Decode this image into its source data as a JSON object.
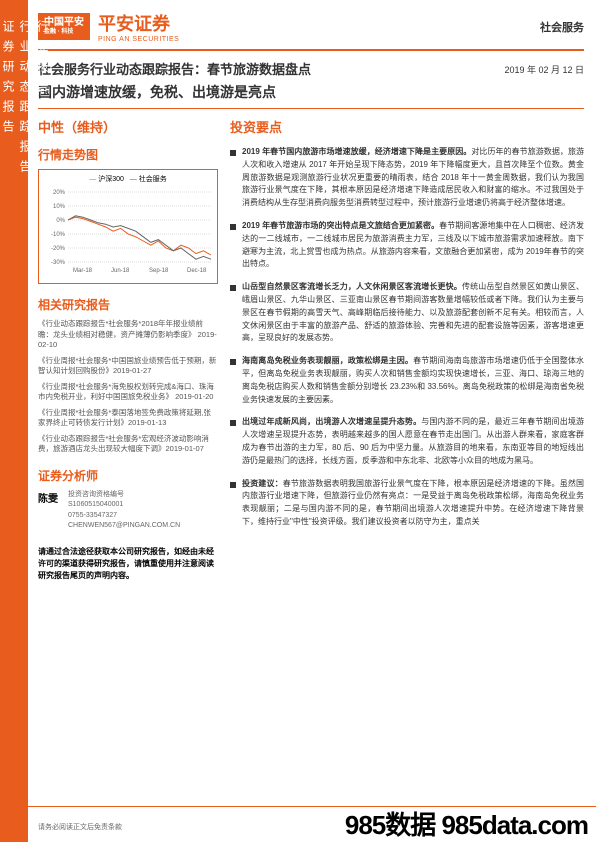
{
  "sidebar": {
    "blocks": [
      "行业报告",
      "行业动态跟踪报告",
      "证券研究报告"
    ]
  },
  "header": {
    "badge_main": "中国平安",
    "badge_sub": "金融 · 科技",
    "brand_cn": "平安证券",
    "brand_en": "PING AN SECURITIES",
    "category": "社会服务",
    "date": "2019 年 02 月 12 日"
  },
  "title": {
    "line1": "社会服务行业动态跟踪报告：春节旅游数据盘点",
    "line2": "国内游增速放缓，免税、出境游是亮点"
  },
  "rating": "中性（维持）",
  "chart": {
    "title": "行情走势图",
    "legend1": "沪深300",
    "legend2": "社会服务",
    "ylabels": [
      "20%",
      "10%",
      "0%",
      "-10%",
      "-20%",
      "-30%"
    ],
    "xlabels": [
      "Mar-18",
      "Jun-18",
      "Sep-18",
      "Dec-18"
    ],
    "series1_color": "#e85d1e",
    "series2_color": "#666666",
    "series1": [
      0,
      2,
      1,
      -1,
      -3,
      -5,
      -8,
      -6,
      -10,
      -12,
      -15,
      -18,
      -15,
      -20,
      -22,
      -18,
      -20,
      -24,
      -22,
      -25
    ],
    "series2": [
      0,
      3,
      2,
      0,
      -2,
      -3,
      -5,
      -4,
      -6,
      -8,
      -12,
      -16,
      -14,
      -18,
      -22,
      -20,
      -24,
      -28,
      -26,
      -28
    ]
  },
  "related": {
    "title": "相关研究报告",
    "items": [
      "《行业动态跟踪报告*社会服务*2018年年报业绩前瞻：龙头业绩相对稳健，资产摊薄仍影响季度》 2019-02-10",
      "《行业周报*社会服务*中国国旅业绩预告低于预期，新智认知计划回购股份》2019-01-27",
      "《行业周报*社会服务*海免股权划转完成&海口、珠海市内免税开业，利好中国国旅免税业务》 2019-01-20",
      "《行业周报*社会服务*泰国落地签免费政策将延期,张家界终止可转债发行计划》2019-01-13",
      "《行业动态跟踪报告*社会服务*宏观经济波动影响消费，旅游酒店龙头出现较大幅度下调》2019-01-07"
    ]
  },
  "analyst": {
    "title": "证券分析师",
    "name": "陈雯",
    "label1": "投资咨询资格编号",
    "id": "S1060515040001",
    "phone": "0755-33547327",
    "email": "CHENWEN567@PINGAN.COM.CN"
  },
  "disclaimer": "请通过合法途径获取本公司研究报告，如经由未经许可的渠道获得研究报告，请慎重使用并注意阅读研究报告尾页的声明内容。",
  "key_points": {
    "title": "投资要点",
    "items": [
      {
        "bold": "2019 年春节国内旅游市场增速放缓，经济增速下降是主要原因。",
        "text": "对比历年的春节旅游数据，旅游人次和收入增速从 2017 年开始呈现下降态势，2019 年下降幅度更大，且首次降至个位数。黄金周旅游数据是观测旅游行业状况更重要的晴雨表，结合 2018 年十一黄金周数据，我们认为我国旅游行业景气度在下降，其根本原因是经济增速下降造成居民收入和财富的缩水。不过我国处于消费结构从生存型消费向服务型消费转型过程中，预计旅游行业增速仍将高于经济整体增速。"
      },
      {
        "bold": "2019 年春节旅游市场的突出特点是文旅结合更加紧密。",
        "text": "春节期间客源地集中在人口稠密、经济发达的一二线城市，一二线城市居民为旅游消费主力军，三线及以下城市旅游需求加速释放。南下避寒为主流，北上赏雪也成为热点。从旅游内容来看，文旅融合更加紧密，成为 2019年春节的突出特点。"
      },
      {
        "bold": "山岳型自然景区客流增长乏力，人文休闲景区客流增长更快。",
        "text": "传统山岳型自然景区如黄山景区、峨眉山景区、九华山景区、三亚南山景区春节期间游客数量增幅较低或者下降。我们认为主要与景区在春节假期的高雪天气、高峰期临后接待能力、以及旅游配套创新不足有关。相较而言，人文休闲景区由于丰富的旅游产品、舒适的旅游体验、完善和先进的配套设施等因素，游客增速更高，呈现良好的发展态势。"
      },
      {
        "bold": "海南离岛免税业务表现靓丽，政策松绑是主因。",
        "text": "春节期间海南岛旅游市场增速仍低于全国整体水平，但离岛免税业务表现靓丽，购买人次和销售金额均实现快速增长，三亚、海口、琼海三地的离岛免税店购买人数和销售金额分别增长 23.23%和 33.56%。离岛免税政策的松绑是海南省免税业务快速发展的主要因素。"
      },
      {
        "bold": "出境过年成新风尚，出境游人次增速呈提升态势。",
        "text": "与国内游不同的是，最近三年春节期间出境游人次增速呈现提升态势，表明越来越多的国人愿意在春节走出国门。从出游人群来看，家庭客群成为春节出游的主力军，80 后、90 后为中坚力量。从旅游目的地来看，东南亚等目的地短线出游仍是最热门的选择，长线方面，反季游和中东北非、北欧等小众目的地成为黑马。"
      },
      {
        "bold": "投资建议：",
        "text": "春节旅游数据表明我国旅游行业景气度在下降，根本原因是经济增速的下降。虽然国内旅游行业增速下降，但旅游行业仍然有亮点：一是受益于离岛免税政策松绑，海南岛免税业务表现靓丽；二是与国内游不同的是，春节期间出境游人次增速提升中势。在经济增速下降背景下，维持行业\"中性\"投资评级。我们建议投资者以防守为主，重点关"
      }
    ]
  },
  "footer": {
    "left": "请务必阅读正文后免责条款",
    "right": "985数据 985data.com"
  },
  "colors": {
    "accent": "#e85d1e",
    "text": "#333333",
    "muted": "#666666"
  }
}
